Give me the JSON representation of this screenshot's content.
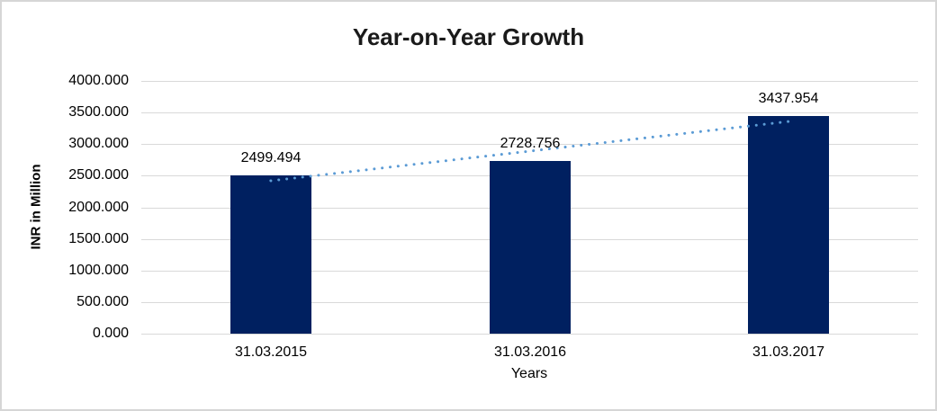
{
  "frame": {
    "background": "#ffffff",
    "border_color": "#d6d6d6"
  },
  "chart_data": {
    "type": "bar",
    "title": "Year-on-Year Growth",
    "categories": [
      "31.03.2015",
      "31.03.2016",
      "31.03.2017"
    ],
    "values": [
      2499.494,
      2728.756,
      3437.954
    ],
    "data_labels": [
      "2499.494",
      "2728.756",
      "3437.954"
    ],
    "xlabel": "Years",
    "ylabel": "INR in Million",
    "ylim": [
      0,
      4000
    ],
    "ytick_step": 500,
    "ytick_labels_top_to_bottom": [
      "4000.000",
      "3500.000",
      "3000.000",
      "2500.000",
      "2000.000",
      "1500.000",
      "1000.000",
      "500.000",
      "0.000"
    ],
    "grid": true,
    "legend": "none",
    "colors": {
      "bar": "#002060",
      "gridline": "#d9d9d9",
      "text": "#000000",
      "title": "#1a1a1a",
      "trendline": "#5b9bd5"
    },
    "trendline": {
      "type": "linear",
      "style": "dotted",
      "from_category_index": 0,
      "to_category_index": 2,
      "from_value": 2420,
      "to_value": 3358
    }
  }
}
